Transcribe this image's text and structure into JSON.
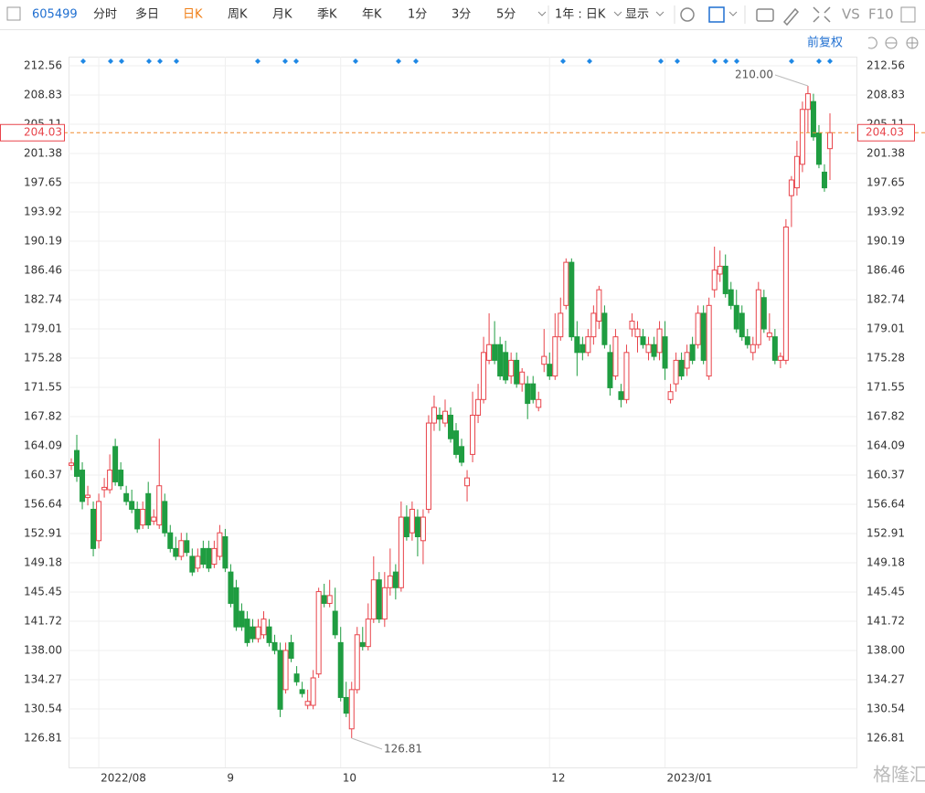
{
  "toolbar": {
    "code": "605499",
    "tabs": [
      "分时",
      "多日",
      "日K",
      "周K",
      "月K",
      "季K",
      "年K",
      "1分",
      "3分",
      "5分"
    ],
    "period": "1年 : 日K",
    "display": "显示",
    "vs": "VS",
    "f10": "F10",
    "adjust": "前复权"
  },
  "watermark": "格隆汇",
  "chart_data": {
    "type": "candlestick",
    "up_color": "#e8434a",
    "down_color": "#1f9d41",
    "ylim": [
      123.08,
      213.73
    ],
    "yticks": [
      126.81,
      130.54,
      134.27,
      {
        "value": 138,
        "label": "138.00"
      },
      141.72,
      145.45,
      149.18,
      152.91,
      156.64,
      160.37,
      164.09,
      167.82,
      171.55,
      175.28,
      179.01,
      182.74,
      186.46,
      190.19,
      193.92,
      197.65,
      201.38,
      205.11,
      208.83,
      212.56
    ],
    "grid": true,
    "last_price": 204.03,
    "high_label": "210.00",
    "low_label": "126.81",
    "categories": [
      null,
      null,
      null,
      null,
      null,
      "2022/08",
      null,
      null,
      null,
      null,
      null,
      null,
      null,
      null,
      null,
      null,
      null,
      null,
      null,
      null,
      null,
      null,
      null,
      null,
      null,
      null,
      null,
      null,
      "9",
      null,
      null,
      null,
      null,
      null,
      null,
      null,
      null,
      null,
      null,
      null,
      null,
      null,
      null,
      null,
      null,
      null,
      null,
      null,
      null,
      "10",
      null,
      null,
      null,
      null,
      null,
      null,
      null,
      null,
      null,
      null,
      null,
      null,
      null,
      null,
      null,
      null,
      null,
      null,
      null,
      null,
      null,
      null,
      null,
      null,
      null,
      null,
      null,
      null,
      null,
      null,
      null,
      null,
      null,
      null,
      null,
      null,
      null,
      "12",
      null,
      null,
      null,
      null,
      null,
      null,
      null,
      null,
      null,
      null,
      null,
      null,
      null,
      null,
      null,
      null,
      null,
      null,
      null,
      null,
      "2023/01",
      null,
      null,
      null,
      null,
      null,
      null,
      null,
      null,
      null,
      null,
      null,
      null,
      null,
      null,
      null,
      null,
      null,
      null,
      null,
      null,
      null,
      null,
      null,
      null,
      null,
      null,
      null,
      null,
      null,
      null
    ],
    "ohlc": [
      [
        161.6,
        162.5,
        161.0,
        161.9
      ],
      [
        163.5,
        165.5,
        159.5,
        160.2
      ],
      [
        161,
        162,
        156,
        157
      ],
      [
        157.5,
        159,
        156.5,
        157.8
      ],
      [
        156,
        157,
        150,
        151
      ],
      [
        152,
        158,
        151,
        157
      ],
      [
        158.5,
        160,
        157.5,
        158.8
      ],
      [
        158.5,
        163,
        158,
        161
      ],
      [
        164,
        165,
        159,
        159.5
      ],
      [
        161,
        162,
        158.5,
        159
      ],
      [
        158,
        159,
        156.5,
        157
      ],
      [
        157,
        158.5,
        155.5,
        156
      ],
      [
        156,
        157,
        153,
        153.5
      ],
      [
        154,
        157,
        153.5,
        156
      ],
      [
        158,
        159.5,
        153.5,
        154
      ],
      [
        154.5,
        156,
        154,
        155
      ],
      [
        154,
        165,
        153.5,
        159
      ],
      [
        157,
        158,
        152.5,
        153
      ],
      [
        153,
        154,
        150.5,
        151
      ],
      [
        151,
        152.5,
        149.5,
        150
      ],
      [
        150,
        153,
        149.5,
        152
      ],
      [
        152,
        153,
        150,
        150.5
      ],
      [
        150,
        151,
        147.5,
        148
      ],
      [
        148.5,
        151,
        148,
        150
      ],
      [
        151,
        152,
        148.5,
        149
      ],
      [
        151,
        152,
        148,
        148.5
      ],
      [
        149,
        152,
        148.5,
        151
      ],
      [
        150,
        154,
        149.5,
        153
      ],
      [
        152.5,
        153.5,
        148,
        148.5
      ],
      [
        148,
        149,
        143.5,
        144
      ],
      [
        146,
        147,
        140.5,
        141
      ],
      [
        143,
        144,
        140.5,
        141
      ],
      [
        142,
        143,
        138.5,
        139
      ],
      [
        141,
        142,
        139,
        139.5
      ],
      [
        139.5,
        142,
        139,
        141
      ],
      [
        140,
        143,
        139.5,
        142
      ],
      [
        141,
        142,
        138.5,
        139
      ],
      [
        139,
        140,
        137.5,
        138
      ],
      [
        138,
        139,
        129.5,
        130.5
      ],
      [
        133,
        139,
        132.5,
        138
      ],
      [
        139,
        140,
        136.5,
        137
      ],
      [
        135,
        136,
        133.5,
        134
      ],
      [
        133,
        134,
        132,
        132.5
      ],
      [
        131,
        133,
        130.5,
        131.5
      ],
      [
        131,
        135.5,
        130.5,
        134.5
      ],
      [
        135,
        146,
        134.5,
        145.5
      ],
      [
        145,
        146.5,
        143.5,
        144
      ],
      [
        144,
        147,
        143.5,
        145
      ],
      [
        143,
        146,
        139.5,
        140
      ],
      [
        139,
        141,
        131.5,
        132
      ],
      [
        132,
        134,
        129.5,
        130
      ],
      [
        128,
        134,
        126.81,
        133
      ],
      [
        133,
        141,
        132.5,
        140
      ],
      [
        139,
        141,
        138,
        138.5
      ],
      [
        138.5,
        144,
        138,
        142
      ],
      [
        142,
        150,
        141.5,
        147
      ],
      [
        147,
        148,
        141.5,
        142
      ],
      [
        142,
        148,
        141,
        146
      ],
      [
        146,
        151,
        145,
        147.5
      ],
      [
        148,
        149,
        144.5,
        146
      ],
      [
        146,
        157,
        145.5,
        155
      ],
      [
        155,
        156.5,
        152,
        152.5
      ],
      [
        153,
        157,
        152,
        156
      ],
      [
        155,
        156,
        150,
        152.5
      ],
      [
        152,
        156,
        149,
        155
      ],
      [
        156,
        168,
        155.5,
        167
      ],
      [
        167,
        170.5,
        166,
        169
      ],
      [
        168,
        169,
        166,
        167.5
      ],
      [
        167,
        170,
        166.5,
        168.5
      ],
      [
        168,
        169,
        164.5,
        165
      ],
      [
        166,
        167,
        162.5,
        163
      ],
      [
        164,
        165,
        161.5,
        162
      ],
      [
        159,
        161,
        157,
        160
      ],
      [
        163,
        171,
        162,
        168
      ],
      [
        168,
        172,
        167,
        170
      ],
      [
        170,
        178,
        169.5,
        176
      ],
      [
        175,
        181,
        174.5,
        177
      ],
      [
        177,
        180,
        174.5,
        175
      ],
      [
        177,
        178,
        172.5,
        173
      ],
      [
        176,
        177.5,
        172,
        172.5
      ],
      [
        173,
        176,
        172,
        175
      ],
      [
        175,
        176,
        171.5,
        172
      ],
      [
        172,
        174,
        171,
        173.5
      ],
      [
        172,
        173,
        167.5,
        169.5
      ],
      [
        172,
        173,
        169.5,
        170
      ],
      [
        169,
        171,
        168.5,
        170
      ],
      [
        174.5,
        179,
        173.5,
        175.5
      ],
      [
        174.5,
        176,
        172.5,
        173
      ],
      [
        173,
        181,
        172.5,
        178
      ],
      [
        178,
        183,
        177.5,
        181
      ],
      [
        182,
        188,
        181.5,
        187.5
      ],
      [
        187.5,
        188,
        177.5,
        178
      ],
      [
        178,
        180,
        173,
        176
      ],
      [
        177,
        178,
        175,
        176
      ],
      [
        176,
        179,
        175.5,
        178
      ],
      [
        178,
        182,
        177,
        181
      ],
      [
        180,
        184.5,
        179,
        184
      ],
      [
        181,
        182,
        176.5,
        177
      ],
      [
        176,
        177,
        170.5,
        171.5
      ],
      [
        173,
        179,
        172.5,
        178
      ],
      [
        171,
        172,
        169,
        170
      ],
      [
        170,
        177,
        169.5,
        176
      ],
      [
        179,
        181,
        178,
        180
      ],
      [
        178,
        180,
        176,
        179
      ],
      [
        178,
        179,
        176.5,
        177
      ],
      [
        176,
        178,
        175,
        177
      ],
      [
        177,
        178,
        175,
        175.5
      ],
      [
        176,
        180,
        175,
        179
      ],
      [
        178,
        180,
        172.5,
        174
      ],
      [
        170,
        172,
        169.5,
        171
      ],
      [
        172,
        176,
        171,
        175
      ],
      [
        175,
        176,
        172.5,
        173
      ],
      [
        174,
        177,
        173,
        176
      ],
      [
        177,
        178,
        174.5,
        175
      ],
      [
        177,
        182,
        176.5,
        181
      ],
      [
        181,
        182,
        174.5,
        175
      ],
      [
        173,
        183,
        172.5,
        182
      ],
      [
        184,
        189.5,
        183,
        186.5
      ],
      [
        186,
        189,
        185,
        187
      ],
      [
        187,
        188.5,
        183,
        183.5
      ],
      [
        184,
        185,
        181.5,
        182
      ],
      [
        182,
        184,
        178.5,
        179
      ],
      [
        181,
        182,
        177.5,
        178
      ],
      [
        178,
        179,
        176.5,
        177
      ],
      [
        176,
        178,
        175,
        177
      ],
      [
        177,
        185,
        176.5,
        184
      ],
      [
        183,
        184,
        178.5,
        179
      ],
      [
        178,
        181,
        177.5,
        178.5
      ],
      [
        178,
        179,
        174.5,
        175
      ],
      [
        175,
        176,
        174,
        175.5
      ],
      [
        175,
        193,
        174.5,
        192
      ],
      [
        196,
        198.5,
        192,
        198
      ],
      [
        197,
        203,
        196,
        201
      ],
      [
        200,
        208,
        199,
        207
      ],
      [
        207,
        210,
        204,
        209
      ],
      [
        208,
        209,
        203,
        203.5
      ],
      [
        204,
        205,
        199.5,
        200
      ],
      [
        199,
        200,
        196.5,
        197
      ],
      [
        202,
        206.5,
        198,
        204.03
      ]
    ]
  }
}
